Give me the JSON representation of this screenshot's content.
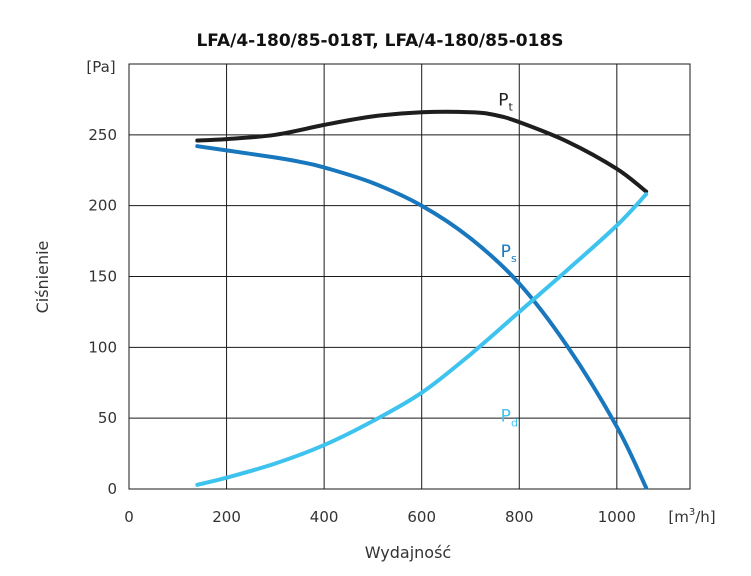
{
  "chart_data": {
    "type": "line",
    "title": "LFA/4-180/85-018T, LFA/4-180/85-018S",
    "xlabel": "Wydajność",
    "ylabel": "Ciśnienie",
    "x_unit_base": "[m",
    "x_unit_sup": "3",
    "x_unit_tail": "/h]",
    "y_unit": "[Pa]",
    "xlim": [
      0,
      1150
    ],
    "ylim": [
      0,
      300
    ],
    "x_ticks": [
      0,
      200,
      400,
      600,
      800,
      1000
    ],
    "y_ticks": [
      0,
      50,
      100,
      150,
      200,
      250
    ],
    "grid": true,
    "series": [
      {
        "name": "P",
        "subscript": "t",
        "color": "#1e1e1e",
        "points": [
          [
            140,
            246
          ],
          [
            200,
            247
          ],
          [
            300,
            250
          ],
          [
            400,
            257
          ],
          [
            500,
            263
          ],
          [
            600,
            266
          ],
          [
            700,
            266
          ],
          [
            750,
            264
          ],
          [
            800,
            259
          ],
          [
            900,
            245
          ],
          [
            1000,
            226
          ],
          [
            1060,
            210
          ]
        ]
      },
      {
        "name": "P",
        "subscript": "s",
        "color": "#1877bd",
        "points": [
          [
            140,
            242
          ],
          [
            200,
            239
          ],
          [
            300,
            234
          ],
          [
            350,
            231
          ],
          [
            400,
            227
          ],
          [
            500,
            216
          ],
          [
            600,
            200
          ],
          [
            700,
            177
          ],
          [
            800,
            145
          ],
          [
            900,
            100
          ],
          [
            1000,
            44
          ],
          [
            1060,
            1
          ]
        ]
      },
      {
        "name": "P",
        "subscript": "d",
        "color": "#3ec3ef",
        "points": [
          [
            140,
            3
          ],
          [
            200,
            8
          ],
          [
            300,
            18
          ],
          [
            400,
            31
          ],
          [
            500,
            48
          ],
          [
            600,
            68
          ],
          [
            700,
            95
          ],
          [
            800,
            125
          ],
          [
            900,
            155
          ],
          [
            1000,
            186
          ],
          [
            1060,
            208
          ]
        ]
      }
    ]
  }
}
